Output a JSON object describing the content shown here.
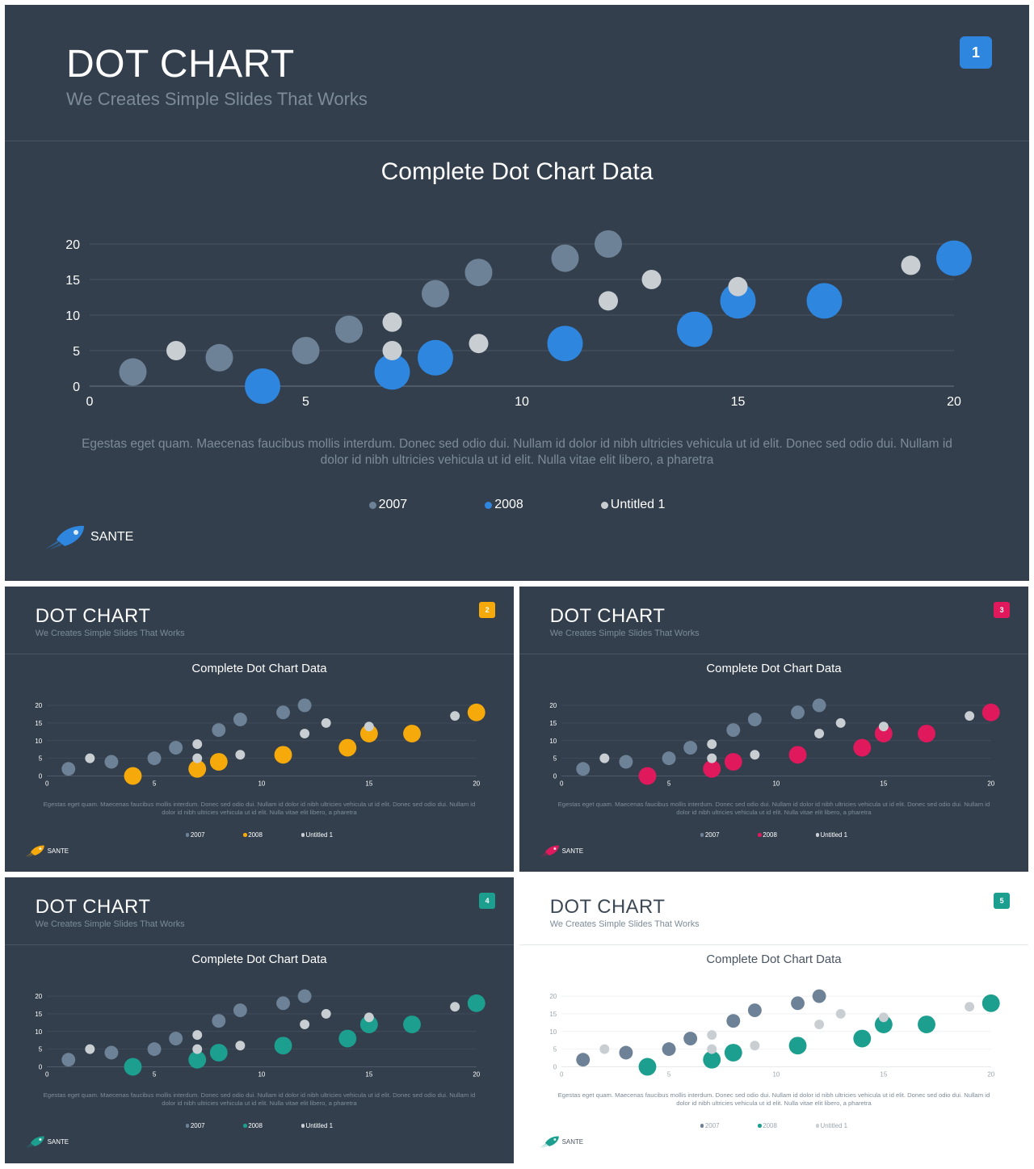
{
  "slides": [
    {
      "number": "1",
      "accent": "#2e86de",
      "theme": "dark"
    },
    {
      "number": "2",
      "accent": "#f6a90b",
      "theme": "dark"
    },
    {
      "number": "3",
      "accent": "#e0195d",
      "theme": "dark"
    },
    {
      "number": "4",
      "accent": "#1c9f8f",
      "theme": "dark"
    },
    {
      "number": "5",
      "accent": "#1c9f8f",
      "theme": "light"
    }
  ],
  "slide_text": {
    "title": "DOT CHART",
    "subtitle": "We Creates Simple Slides That Works",
    "description": "Egestas eget quam. Maecenas faucibus mollis interdum. Donec sed odio dui. Nullam id dolor id nibh ultricies vehicula ut id elit. Donec sed odio dui. Nullam id dolor id nibh ultricies vehicula ut id elit. Nulla vitae elit libero, a pharetra",
    "brand": "SANTE"
  },
  "chart_data": {
    "type": "scatter",
    "title": "Complete Dot Chart Data",
    "xlim": [
      0,
      20
    ],
    "ylim": [
      0,
      20
    ],
    "xticks": [
      0,
      5,
      10,
      15,
      20
    ],
    "yticks": [
      0,
      5,
      10,
      15,
      20
    ],
    "grid": true,
    "legend_position": "bottom",
    "series": [
      {
        "name": "2007",
        "color": "#6e8297",
        "points": [
          [
            1,
            2
          ],
          [
            3,
            4
          ],
          [
            5,
            5
          ],
          [
            6,
            8
          ],
          [
            8,
            13
          ],
          [
            9,
            16
          ],
          [
            11,
            18
          ],
          [
            12,
            20
          ]
        ]
      },
      {
        "name": "2008",
        "color": "accent",
        "points": [
          [
            4,
            0
          ],
          [
            7,
            2
          ],
          [
            8,
            4
          ],
          [
            11,
            6
          ],
          [
            14,
            8
          ],
          [
            15,
            12
          ],
          [
            17,
            12
          ],
          [
            20,
            18
          ]
        ]
      },
      {
        "name": "Untitled 1",
        "color": "#c9ced3",
        "points": [
          [
            2,
            5
          ],
          [
            7,
            9
          ],
          [
            7,
            5
          ],
          [
            9,
            6
          ],
          [
            12,
            12
          ],
          [
            13,
            15
          ],
          [
            15,
            14
          ],
          [
            19,
            17
          ]
        ]
      }
    ]
  }
}
